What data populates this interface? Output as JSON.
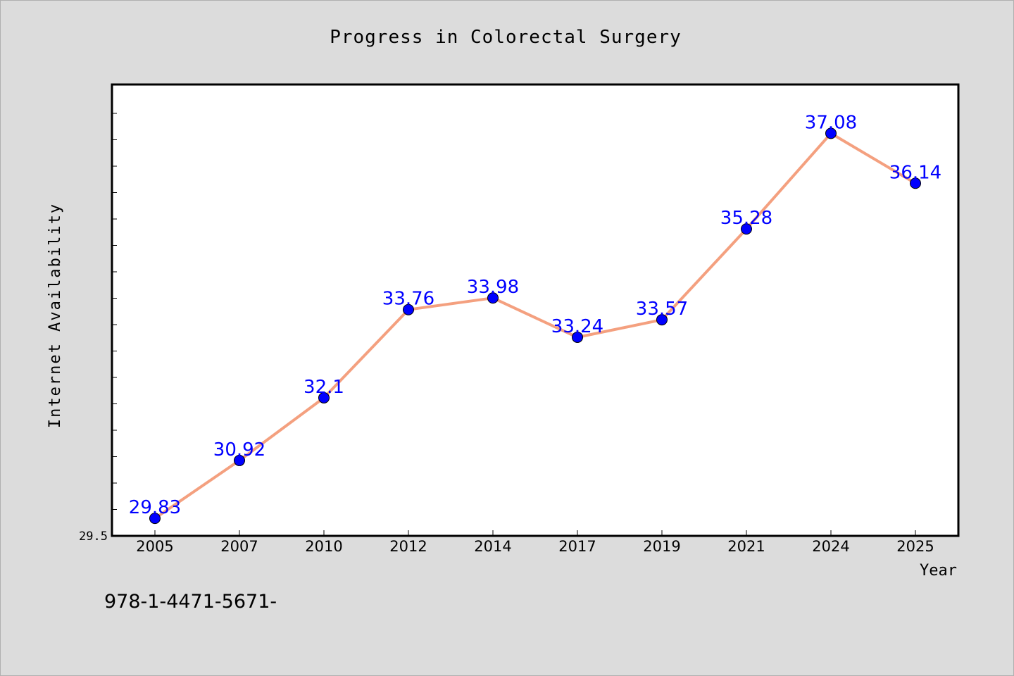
{
  "chart_data": {
    "type": "line",
    "title": "Progress in Colorectal Surgery",
    "xlabel": "Year",
    "ylabel": "Internet Availability",
    "categories": [
      "2005",
      "2007",
      "2010",
      "2012",
      "2014",
      "2017",
      "2019",
      "2021",
      "2024",
      "2025"
    ],
    "series": [
      {
        "values": [
          29.83,
          30.92,
          32.1,
          33.76,
          33.98,
          33.24,
          33.57,
          35.28,
          37.08,
          36.14
        ],
        "data_labels": [
          "29.83",
          "30.92",
          "32.1",
          "33.76",
          "33.98",
          "33.24",
          "33.57",
          "35.28",
          "37.08",
          "36.14"
        ],
        "line_color": "#f4a07f",
        "marker_color": "#0000ff",
        "label_color": "#0000ff"
      }
    ],
    "ylim": [
      29.5,
      38.0
    ],
    "y_tick_labels": [
      "29.5"
    ],
    "grid": false,
    "legend": "none"
  },
  "footer_text": "978-1-4471-5671-",
  "colors": {
    "background": "#dcdcdc",
    "plot_background": "#ffffff",
    "axis": "#000000"
  }
}
